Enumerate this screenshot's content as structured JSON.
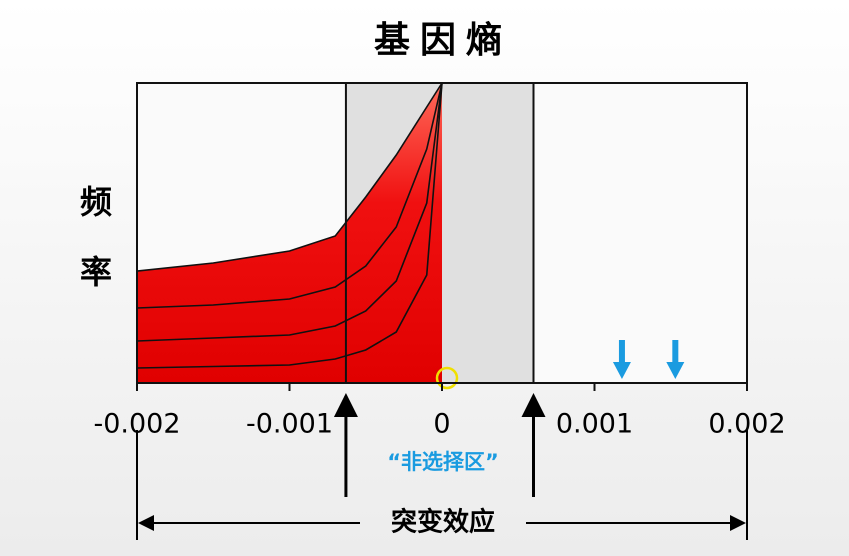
{
  "chart_data": {
    "type": "area",
    "title": "基因熵",
    "y_label": "频率",
    "region_label": "“非选择区”",
    "bottom_label": "突变效应",
    "x": [
      -0.002,
      -0.0015,
      -0.001,
      -0.0007,
      -0.0005,
      -0.0003,
      -0.0001,
      0
    ],
    "series": [
      {
        "color": "#e00000",
        "values": [
          0.373,
          0.4,
          0.44,
          0.49,
          0.62,
          0.76,
          0.92,
          1
        ]
      },
      {
        "color": "#e00000",
        "values": [
          0.25,
          0.26,
          0.28,
          0.32,
          0.39,
          0.52,
          0.78,
          1
        ]
      },
      {
        "color": "#e00000",
        "values": [
          0.14,
          0.15,
          0.16,
          0.19,
          0.24,
          0.34,
          0.6,
          1
        ]
      },
      {
        "color": "#e00000",
        "values": [
          0.05,
          0.055,
          0.06,
          0.08,
          0.11,
          0.17,
          0.36,
          1
        ]
      }
    ],
    "region": [
      -0.00063,
      0.0006
    ],
    "region_color": "#e0e0e0",
    "arrows": [
      0.00118,
      0.00153
    ],
    "arrow_color": "#1a9be0",
    "xlim": [
      -0.002,
      0.002
    ],
    "ylim": [
      0,
      1
    ],
    "xticks": [
      -0.002,
      -0.001,
      0,
      0.001,
      0.002
    ]
  }
}
